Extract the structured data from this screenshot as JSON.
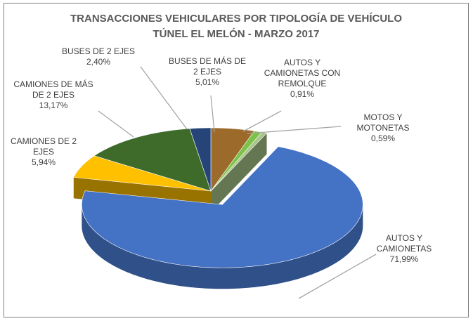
{
  "chart_data": {
    "type": "pie3d",
    "title": "TRANSACCIONES VEHICULARES POR TIPOLOGÍA DE VEHÍCULO",
    "subtitle": "TÚNEL EL MELÓN - MARZO 2017",
    "categories": [
      "BUSES DE MÁS DE 2 EJES",
      "AUTOS Y CAMIONETAS CON REMOLQUE",
      "MOTOS Y MOTONETAS",
      "AUTOS Y CAMIONETAS",
      "CAMIONES DE 2 EJES",
      "CAMIONES DE MÁS DE 2 EJES",
      "BUSES DE 2 EJES"
    ],
    "values": [
      5.01,
      0.91,
      0.59,
      71.99,
      5.94,
      13.17,
      2.4
    ],
    "value_labels": [
      "5,01%",
      "0,91%",
      "0,59%",
      "71,99%",
      "5,94%",
      "13,17%",
      "2,40%"
    ],
    "colors": [
      "#9c6a2a",
      "#7cc24a",
      "#a9c58a",
      "#4472c4",
      "#ffc000",
      "#3e6b2a",
      "#264478"
    ],
    "exploded": 3
  }
}
